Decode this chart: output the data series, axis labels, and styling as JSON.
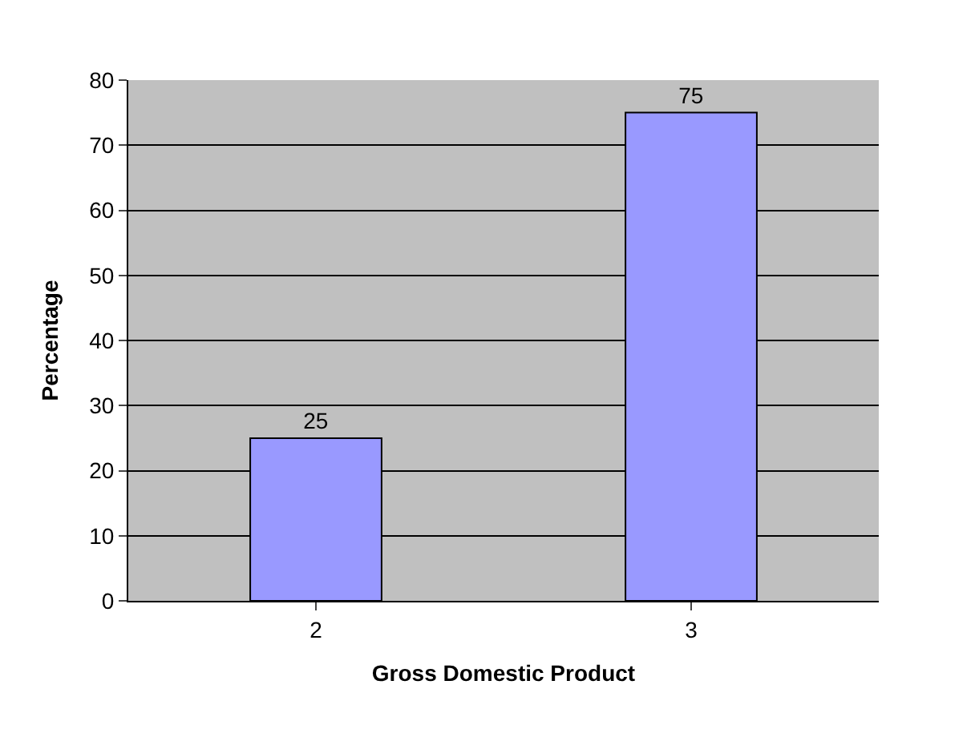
{
  "chart_data": {
    "type": "bar",
    "xlabel": "Gross Domestic Product",
    "ylabel": "Percentage",
    "categories": [
      "2",
      "3"
    ],
    "values": [
      25,
      75
    ],
    "color": "#9999ff",
    "ylim": [
      0,
      80
    ],
    "yticks": [
      0,
      10,
      20,
      30,
      40,
      50,
      60,
      70,
      80
    ],
    "grid": "y",
    "data_labels": true
  }
}
